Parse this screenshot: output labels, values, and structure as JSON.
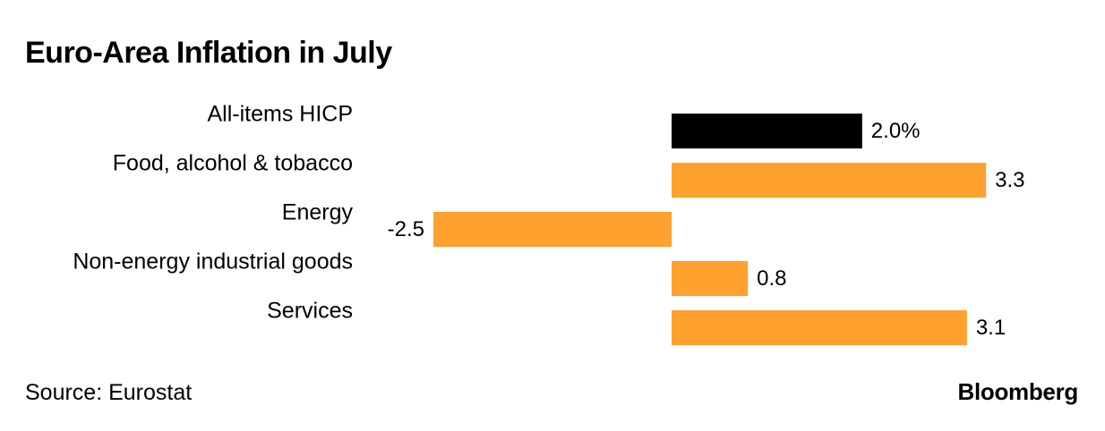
{
  "chart_data": {
    "type": "bar",
    "orientation": "horizontal",
    "title": "Euro-Area Inflation in July",
    "categories": [
      "All-items HICP",
      "Food, alcohol & tobacco",
      "Energy",
      "Non-energy industrial goods",
      "Services"
    ],
    "values": [
      2.0,
      3.3,
      -2.5,
      0.8,
      3.1
    ],
    "value_labels": [
      "2.0%",
      "3.3",
      "-2.5",
      "0.8",
      "3.1"
    ],
    "unit": "%",
    "xlim": [
      -2.5,
      3.5
    ],
    "xlabel": "",
    "ylabel": "",
    "grid": false,
    "legend": "none",
    "colors": {
      "highlight": "#000000",
      "default": "#ffa12e"
    },
    "highlight_index": 0
  },
  "footer": {
    "source": "Source: Eurostat",
    "brand": "Bloomberg"
  }
}
